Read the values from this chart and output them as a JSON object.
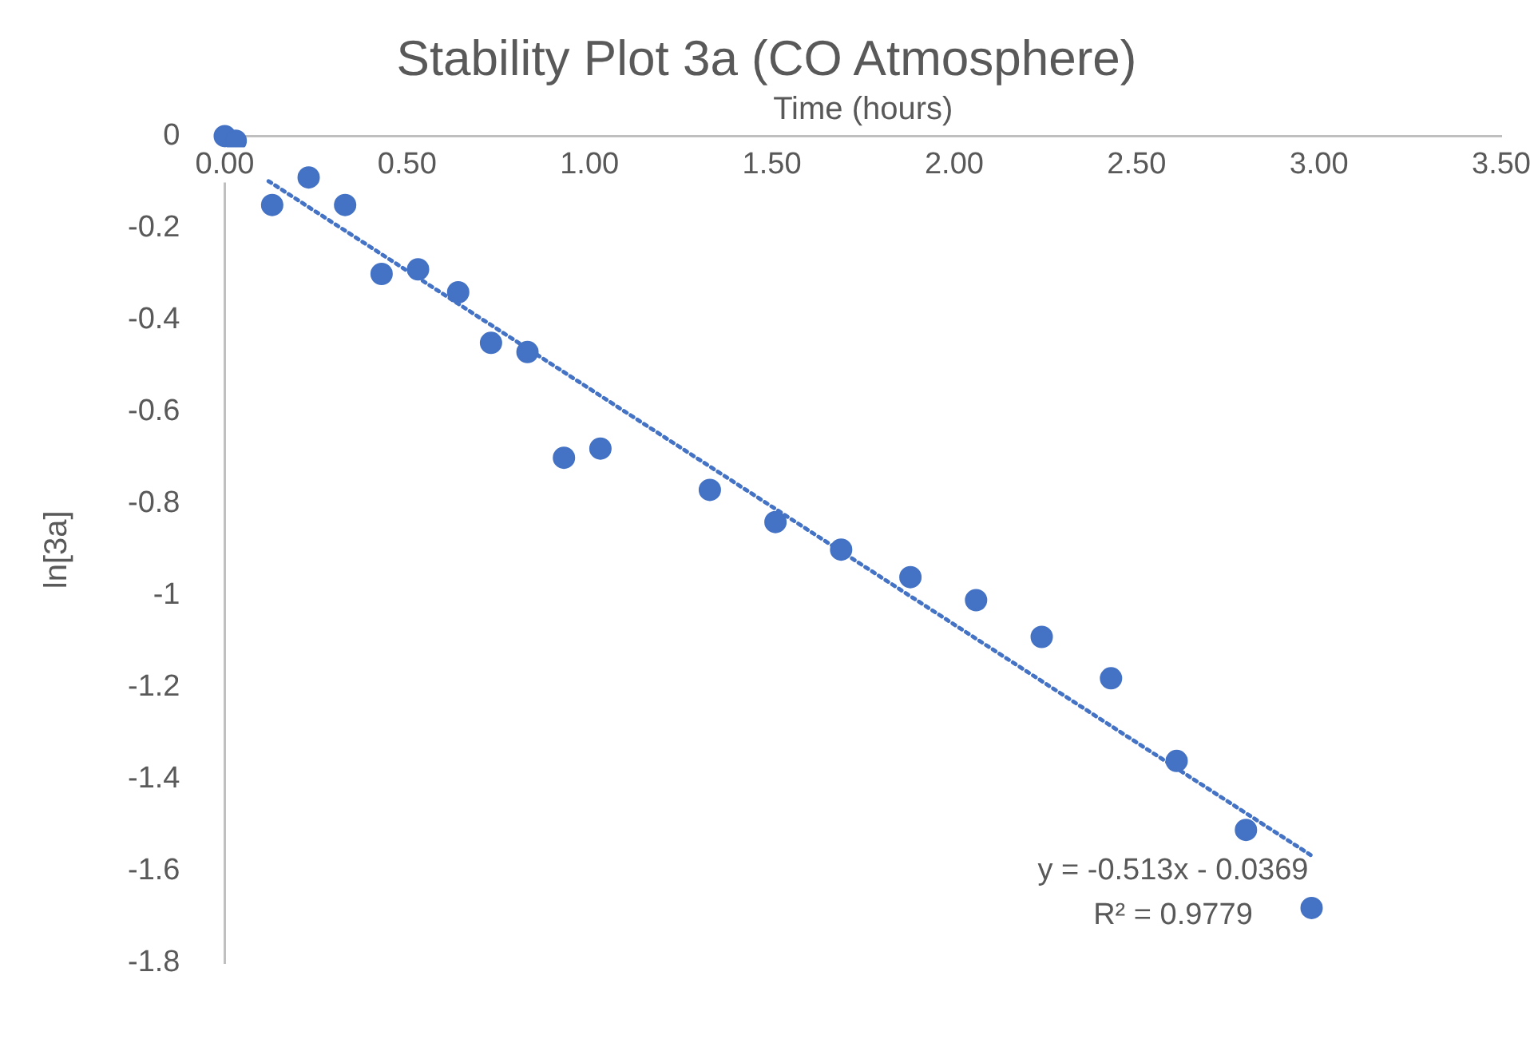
{
  "chart_data": {
    "type": "scatter",
    "title": "Stability Plot 3a (CO Atmosphere)",
    "xlabel": "Time (hours)",
    "ylabel": "ln[3a]",
    "xlim": [
      0,
      3.5
    ],
    "xticks": [
      {
        "value": 0,
        "label": "0.00"
      },
      {
        "value": 0.5,
        "label": "0.50"
      },
      {
        "value": 1,
        "label": "1.00"
      },
      {
        "value": 1.5,
        "label": "1.50"
      },
      {
        "value": 2,
        "label": "2.00"
      },
      {
        "value": 2.5,
        "label": "2.50"
      },
      {
        "value": 3,
        "label": "3.00"
      },
      {
        "value": 3.5,
        "label": "3.50"
      }
    ],
    "ylim": [
      -1.8,
      0
    ],
    "yticks": [
      0,
      -0.2,
      -0.4,
      -0.6,
      -0.8,
      -1,
      -1.2,
      -1.4,
      -1.6,
      -1.8
    ],
    "grid": false,
    "legend": false,
    "marker": "circle",
    "series": [
      {
        "color": "#4472c4",
        "x": [
          0,
          0.03,
          0.13,
          0.23,
          0.33,
          0.43,
          0.53,
          0.64,
          0.73,
          0.83,
          0.93,
          1.03,
          1.33,
          1.51,
          1.69,
          1.88,
          2.06,
          2.24,
          2.43,
          2.61,
          2.8,
          2.98
        ],
        "values": [
          0,
          -0.01,
          -0.15,
          -0.09,
          -0.15,
          -0.3,
          -0.29,
          -0.34,
          -0.45,
          -0.47,
          -0.7,
          -0.68,
          -0.77,
          -0.84,
          -0.9,
          -0.96,
          -1.01,
          -1.09,
          -1.18,
          -1.36,
          -1.51,
          -1.68
        ]
      },
      {
        "type": "line",
        "color": "#4472c4",
        "line_style": "dotted",
        "marker": "none",
        "x": [
          0.12,
          2.98
        ],
        "values": [
          -0.098,
          -1.566
        ]
      }
    ],
    "annotations": [
      "y = -0.513x - 0.0369",
      "R² = 0.9779"
    ]
  }
}
